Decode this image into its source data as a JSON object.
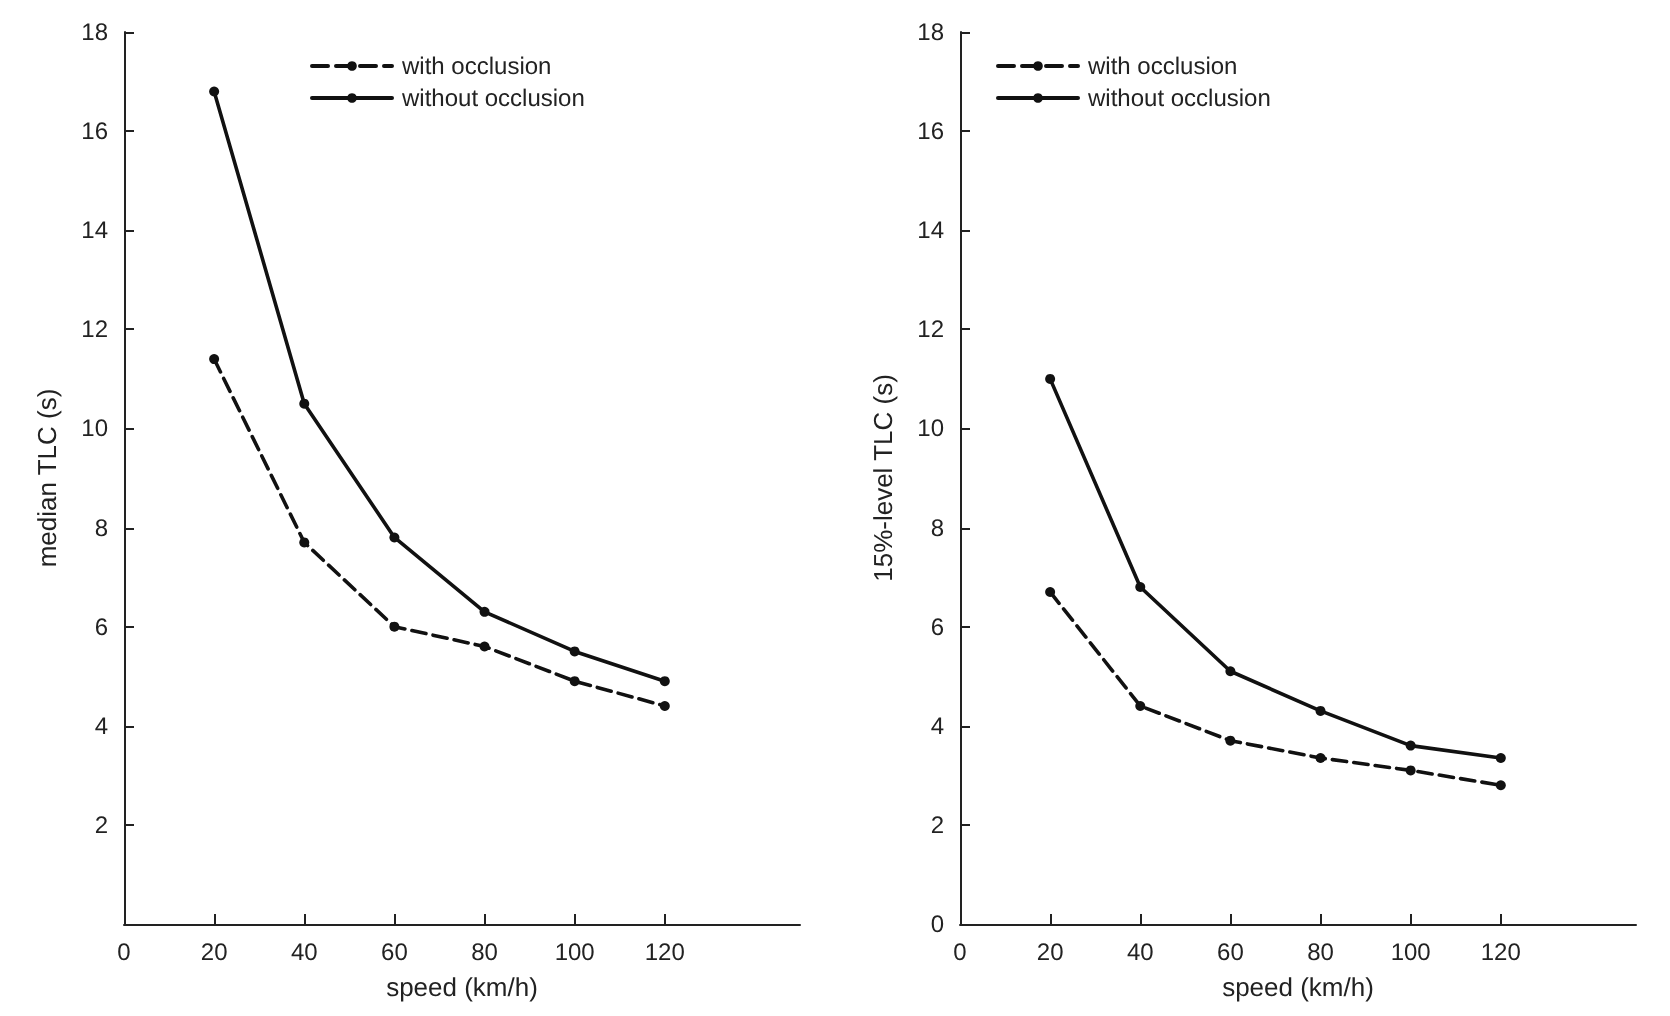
{
  "chart_data": [
    {
      "type": "line",
      "xlabel": "speed (km/h)",
      "ylabel": "median TLC (s)",
      "x": [
        20,
        40,
        60,
        80,
        100,
        120
      ],
      "series": [
        {
          "name": "with occlusion",
          "color": "#111111",
          "line_style": "dashed",
          "values": [
            11.4,
            7.7,
            6.0,
            5.6,
            4.9,
            4.4
          ]
        },
        {
          "name": "without occlusion",
          "color": "#111111",
          "line_style": "solid",
          "values": [
            16.8,
            10.5,
            7.8,
            6.3,
            5.5,
            4.9
          ]
        }
      ],
      "xlim": [
        0,
        150
      ],
      "xticks": [
        0,
        20,
        40,
        60,
        80,
        100,
        120
      ],
      "ylim": [
        0,
        18
      ],
      "yticks": [
        2,
        4,
        6,
        8,
        10,
        12,
        14,
        16,
        18
      ],
      "grid": false,
      "legend": "top right",
      "marker": "circle"
    },
    {
      "type": "line",
      "xlabel": "speed (km/h)",
      "ylabel": "15%-level TLC (s)",
      "x": [
        20,
        40,
        60,
        80,
        100,
        120
      ],
      "series": [
        {
          "name": "with occlusion",
          "color": "#111111",
          "line_style": "dashed",
          "values": [
            6.7,
            4.4,
            3.7,
            3.35,
            3.1,
            2.8
          ]
        },
        {
          "name": "without occlusion",
          "color": "#111111",
          "line_style": "solid",
          "values": [
            11.0,
            6.8,
            5.1,
            4.3,
            3.6,
            3.35
          ]
        }
      ],
      "xlim": [
        0,
        150
      ],
      "xticks": [
        0,
        20,
        40,
        60,
        80,
        100,
        120
      ],
      "ylim": [
        0,
        18
      ],
      "yticks": [
        0,
        2,
        4,
        6,
        8,
        10,
        12,
        14,
        16,
        18
      ],
      "grid": false,
      "legend": "top left",
      "marker": "circle"
    }
  ]
}
